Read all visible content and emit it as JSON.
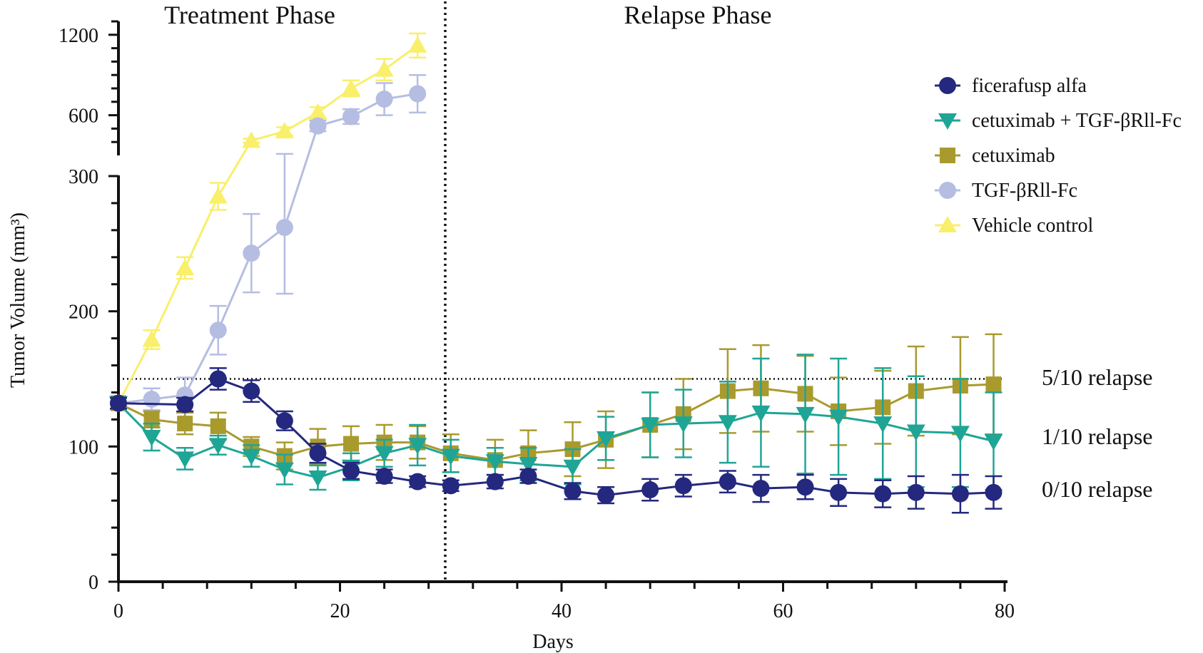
{
  "chart_data": {
    "type": "line",
    "title": "",
    "xlabel": "Days",
    "ylabel": "Tumor Volume (mm³)",
    "xlim": [
      0,
      80
    ],
    "ylim_lower": [
      0,
      300
    ],
    "ylim_upper": [
      300,
      1300
    ],
    "x_ticks": [
      "0",
      "20",
      "40",
      "60",
      "80"
    ],
    "y_ticks_lower": [
      "0",
      "100",
      "200",
      "300"
    ],
    "y_ticks_upper": [
      "600",
      "1200"
    ],
    "phase_divider_x": 29.5,
    "phases": [
      "Treatment Phase",
      "Relapse Phase"
    ],
    "threshold": {
      "y": 150,
      "style": "dotted"
    },
    "relapse_labels": [
      {
        "text": "5/10 relapse",
        "y": 150
      },
      {
        "text": "1/10 relapse",
        "y": 107
      },
      {
        "text": "0/10 relapse",
        "y": 68
      }
    ],
    "legend_position": "top-right",
    "series": [
      {
        "name": "ficerafusp alfa",
        "color": "#24287e",
        "marker": "circle",
        "x": [
          0,
          6,
          9,
          12,
          15,
          18,
          21,
          24,
          27,
          30,
          34,
          37,
          41,
          44,
          48,
          51,
          55,
          58,
          62,
          65,
          69,
          72,
          76,
          79
        ],
        "y": [
          132,
          131,
          150,
          141,
          119,
          95,
          82,
          78,
          74,
          71,
          74,
          78,
          67,
          64,
          68,
          71,
          74,
          69,
          70,
          66,
          65,
          66,
          65,
          66
        ],
        "err": [
          4,
          5,
          8,
          8,
          7,
          7,
          6,
          5,
          4,
          4,
          5,
          5,
          6,
          6,
          8,
          8,
          8,
          10,
          9,
          10,
          10,
          12,
          14,
          12
        ]
      },
      {
        "name": "cetuximab + TGF-βRll-Fc",
        "color": "#1fa596",
        "marker": "triangle-down",
        "x": [
          0,
          3,
          6,
          9,
          12,
          15,
          18,
          21,
          24,
          27,
          30,
          34,
          37,
          41,
          44,
          48,
          51,
          55,
          58,
          62,
          65,
          69,
          72,
          76,
          79
        ],
        "y": [
          132,
          107,
          91,
          101,
          93,
          83,
          77,
          85,
          95,
          101,
          93,
          89,
          87,
          85,
          106,
          116,
          117,
          118,
          125,
          124,
          122,
          117,
          111,
          110,
          104
        ],
        "err": [
          4,
          10,
          8,
          7,
          8,
          11,
          9,
          10,
          10,
          15,
          12,
          10,
          12,
          13,
          16,
          24,
          25,
          30,
          40,
          44,
          43,
          41,
          41,
          40,
          36
        ]
      },
      {
        "name": "cetuximab",
        "color": "#a99a2e",
        "marker": "square",
        "x": [
          0,
          3,
          6,
          9,
          12,
          15,
          18,
          21,
          24,
          27,
          30,
          34,
          37,
          41,
          44,
          48,
          51,
          55,
          58,
          62,
          65,
          69,
          72,
          76,
          79
        ],
        "y": [
          132,
          120,
          117,
          115,
          100,
          93,
          100,
          102,
          103,
          103,
          95,
          90,
          95,
          98,
          105,
          116,
          124,
          141,
          143,
          139,
          126,
          129,
          141,
          145,
          146
        ],
        "err": [
          4,
          6,
          8,
          10,
          7,
          10,
          13,
          13,
          13,
          12,
          14,
          15,
          17,
          20,
          21,
          24,
          26,
          31,
          32,
          28,
          25,
          27,
          33,
          36,
          37
        ]
      },
      {
        "name": "TGF-βRll-Fc",
        "color": "#b5bde2",
        "marker": "circle",
        "x": [
          0,
          3,
          6,
          9,
          12,
          15,
          18,
          21,
          24,
          27
        ],
        "y": [
          132,
          135,
          138,
          186,
          243,
          262,
          520,
          590,
          720,
          760
        ],
        "err": [
          4,
          8,
          13,
          18,
          29,
          49,
          40,
          55,
          120,
          140
        ]
      },
      {
        "name": "Vehicle control",
        "color": "#f9ef6a",
        "marker": "triangle-up",
        "x": [
          0,
          3,
          6,
          9,
          12,
          15,
          18,
          21,
          24,
          27
        ],
        "y": [
          132,
          179,
          232,
          285,
          410,
          480,
          620,
          800,
          940,
          1120
        ],
        "err": [
          4,
          7,
          8,
          10,
          15,
          30,
          40,
          60,
          80,
          90
        ]
      }
    ]
  }
}
